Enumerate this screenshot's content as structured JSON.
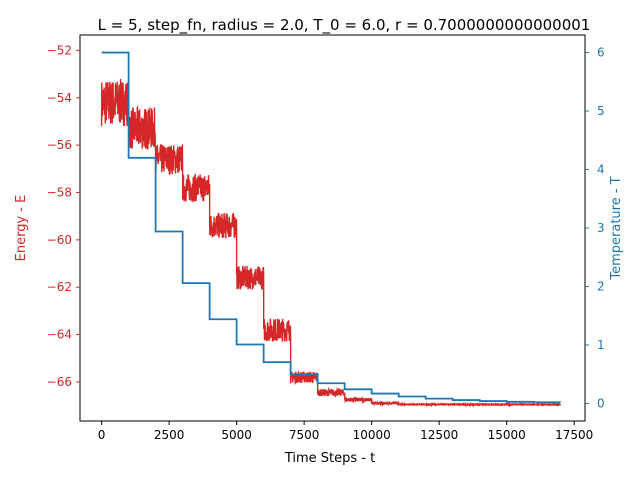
{
  "chart_data": {
    "type": "line",
    "title": "L = 5, step_fn, radius = 2.0, T_0 = 6.0, r = 0.7000000000000001",
    "xlabel": "Time Steps - t",
    "ylabel_left": "Energy - E",
    "ylabel_right": "Temperature - T",
    "xlim": [
      -800,
      17900
    ],
    "ylim_left": [
      -67.65,
      -51.35
    ],
    "ylim_right": [
      -0.3,
      6.3
    ],
    "x_ticks": [
      0,
      2500,
      5000,
      7500,
      10000,
      12500,
      15000,
      17500
    ],
    "x_tick_labels": [
      "0",
      "2500",
      "5000",
      "7500",
      "10000",
      "12500",
      "15000",
      "17500"
    ],
    "y_left_ticks": [
      -52,
      -54,
      -56,
      -58,
      -60,
      -62,
      -64,
      -66
    ],
    "y_left_tick_labels": [
      "−52",
      "−54",
      "−56",
      "−58",
      "−60",
      "−62",
      "−64",
      "−66"
    ],
    "y_right_ticks": [
      0,
      1,
      2,
      3,
      4,
      5,
      6
    ],
    "y_right_tick_labels": [
      "0",
      "1",
      "2",
      "3",
      "4",
      "5",
      "6"
    ],
    "grid": false,
    "colors": {
      "energy": "#d62728",
      "temperature": "#1f77b4"
    },
    "series": [
      {
        "axis": "left",
        "color": "#d62728",
        "segments": [
          {
            "x": [
              0,
              1000
            ],
            "mean": -54.2,
            "noise": 1.0
          },
          {
            "x": [
              1000,
              2000
            ],
            "mean": -55.3,
            "noise": 0.9
          },
          {
            "x": [
              2000,
              3000
            ],
            "mean": -56.6,
            "noise": 0.65
          },
          {
            "x": [
              3000,
              4000
            ],
            "mean": -57.8,
            "noise": 0.6
          },
          {
            "x": [
              4000,
              5000
            ],
            "mean": -59.4,
            "noise": 0.55
          },
          {
            "x": [
              5000,
              6000
            ],
            "mean": -61.6,
            "noise": 0.5
          },
          {
            "x": [
              6000,
              7000
            ],
            "mean": -63.8,
            "noise": 0.5
          },
          {
            "x": [
              7000,
              8000
            ],
            "mean": -65.8,
            "noise": 0.25
          },
          {
            "x": [
              8000,
              9000
            ],
            "mean": -66.45,
            "noise": 0.15
          },
          {
            "x": [
              9000,
              10000
            ],
            "mean": -66.75,
            "noise": 0.08
          },
          {
            "x": [
              10000,
              11000
            ],
            "mean": -66.9,
            "noise": 0.04
          },
          {
            "x": [
              11000,
              17000
            ],
            "mean": -66.95,
            "noise": 0.02
          }
        ]
      },
      {
        "axis": "right",
        "color": "#1f77b4",
        "x": [
          0,
          1000,
          2000,
          3000,
          4000,
          5000,
          6000,
          7000,
          8000,
          9000,
          10000,
          11000,
          12000,
          13000,
          14000,
          15000,
          16000,
          17000
        ],
        "values": [
          6.0,
          4.2,
          2.94,
          2.058,
          1.44,
          1.008,
          0.706,
          0.494,
          0.346,
          0.242,
          0.169,
          0.119,
          0.083,
          0.058,
          0.041,
          0.028,
          0.02,
          0.02
        ]
      }
    ]
  }
}
